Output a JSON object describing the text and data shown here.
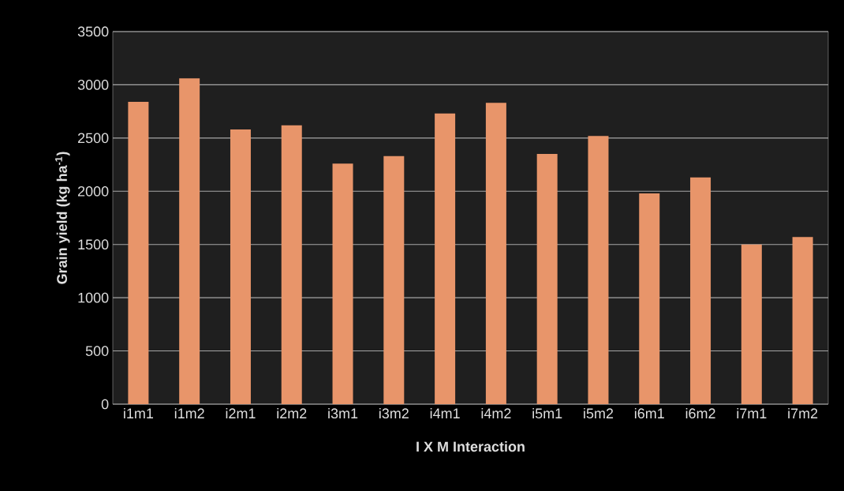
{
  "chart_data": {
    "type": "bar",
    "xlabel": "I X M  Interaction",
    "ylabel": "Grain yield (kg ha$^{-1}$)",
    "categories": [
      "i1m1",
      "i1m2",
      "i2m1",
      "i2m2",
      "i3m1",
      "i3m2",
      "i4m1",
      "i4m2",
      "i5m1",
      "i5m2",
      "i6m1",
      "i6m2",
      "i7m1",
      "i7m2"
    ],
    "values": [
      2840,
      3060,
      2580,
      2620,
      2260,
      2330,
      2730,
      2830,
      2350,
      2520,
      1980,
      2130,
      1500,
      1570
    ],
    "color": "#e8956a",
    "ylim": [
      0,
      3500
    ],
    "yticks": [
      0,
      500,
      1000,
      1500,
      2000,
      2500,
      3000,
      3500
    ],
    "grid": "y"
  }
}
